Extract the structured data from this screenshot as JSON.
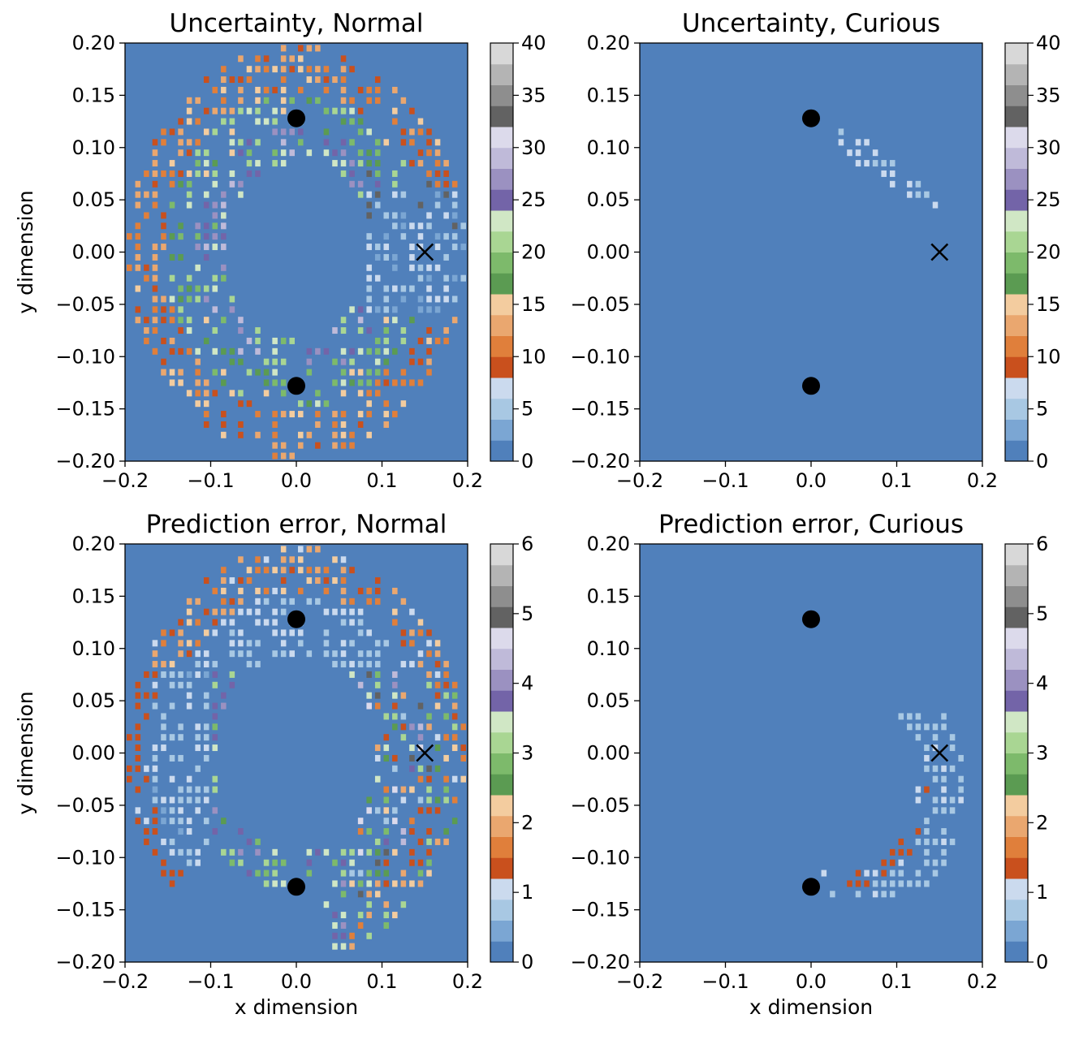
{
  "chart_data": [
    {
      "type": "heatmap",
      "title": "Uncertainty, Normal",
      "xlabel": "",
      "ylabel": "y dimension",
      "xlim": [
        -0.2,
        0.2
      ],
      "ylim": [
        -0.2,
        0.2
      ],
      "x_ticks": [
        "−0.2",
        "−0.1",
        "0.0",
        "0.1",
        "0.2"
      ],
      "y_ticks": [
        "−0.20",
        "−0.15",
        "−0.10",
        "−0.05",
        "0.00",
        "0.05",
        "0.10",
        "0.15",
        "0.20"
      ],
      "colorbar": {
        "range": [
          0,
          40
        ],
        "ticks": [
          "0",
          "5",
          "10",
          "15",
          "20",
          "25",
          "30",
          "35",
          "40"
        ]
      },
      "region": "ring",
      "markers": {
        "circles": [
          [
            0.0,
            0.128
          ],
          [
            0.0,
            -0.128
          ]
        ],
        "cross": [
          0.15,
          0.0
        ]
      }
    },
    {
      "type": "heatmap",
      "title": "Uncertainty, Curious",
      "xlabel": "",
      "ylabel": "",
      "xlim": [
        -0.2,
        0.2
      ],
      "ylim": [
        -0.2,
        0.2
      ],
      "x_ticks": [
        "−0.2",
        "−0.1",
        "0.0",
        "0.1",
        "0.2"
      ],
      "y_ticks": [
        "−0.20",
        "−0.15",
        "−0.10",
        "−0.05",
        "0.00",
        "0.05",
        "0.10",
        "0.15",
        "0.20"
      ],
      "colorbar": {
        "range": [
          0,
          40
        ],
        "ticks": [
          "0",
          "5",
          "10",
          "15",
          "20",
          "25",
          "30",
          "35",
          "40"
        ]
      },
      "region": "diagonal",
      "markers": {
        "circles": [
          [
            0.0,
            0.128
          ],
          [
            0.0,
            -0.128
          ]
        ],
        "cross": [
          0.15,
          0.0
        ]
      }
    },
    {
      "type": "heatmap",
      "title": "Prediction error, Normal",
      "xlabel": "x dimension",
      "ylabel": "y dimension",
      "xlim": [
        -0.2,
        0.2
      ],
      "ylim": [
        -0.2,
        0.2
      ],
      "x_ticks": [
        "−0.2",
        "−0.1",
        "0.0",
        "0.1",
        "0.2"
      ],
      "y_ticks": [
        "−0.20",
        "−0.15",
        "−0.10",
        "−0.05",
        "0.00",
        "0.05",
        "0.10",
        "0.15",
        "0.20"
      ],
      "colorbar": {
        "range": [
          0,
          6
        ],
        "ticks": [
          "0",
          "1",
          "2",
          "3",
          "4",
          "5",
          "6"
        ]
      },
      "region": "ring-error",
      "markers": {
        "circles": [
          [
            0.0,
            0.128
          ],
          [
            0.0,
            -0.128
          ]
        ],
        "cross": [
          0.15,
          0.0
        ]
      }
    },
    {
      "type": "heatmap",
      "title": "Prediction error, Curious",
      "xlabel": "x dimension",
      "ylabel": "",
      "xlim": [
        -0.2,
        0.2
      ],
      "ylim": [
        -0.2,
        0.2
      ],
      "x_ticks": [
        "−0.2",
        "−0.1",
        "0.0",
        "0.1",
        "0.2"
      ],
      "y_ticks": [
        "−0.20",
        "−0.15",
        "−0.10",
        "−0.05",
        "0.00",
        "0.05",
        "0.10",
        "0.15",
        "0.20"
      ],
      "colorbar": {
        "range": [
          0,
          6
        ],
        "ticks": [
          "0",
          "1",
          "2",
          "3",
          "4",
          "5",
          "6"
        ]
      },
      "region": "arc",
      "markers": {
        "circles": [
          [
            0.0,
            0.128
          ],
          [
            0.0,
            -0.128
          ]
        ],
        "cross": [
          0.15,
          0.0
        ]
      }
    }
  ],
  "colormap": [
    "#5080bb",
    "#7ba6d3",
    "#a8c8e3",
    "#cbdaee",
    "#c9501d",
    "#e07f3b",
    "#eaa76f",
    "#f3cc9f",
    "#5b9b52",
    "#7dba6b",
    "#a9d693",
    "#d0e7c5",
    "#7364a8",
    "#9b91c1",
    "#bfbad9",
    "#dcdaeb",
    "#626262",
    "#8e8e8e",
    "#b4b4b4",
    "#d8d8d8"
  ]
}
